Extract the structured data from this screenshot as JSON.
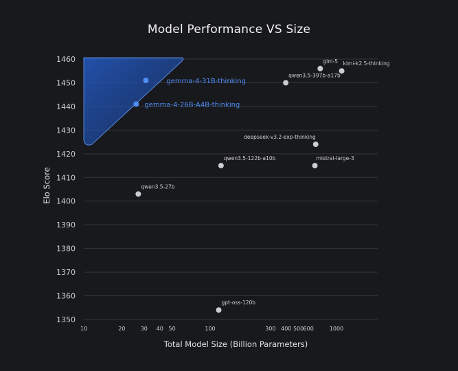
{
  "chart_data": {
    "type": "scatter",
    "title": "Model Performance VS Size",
    "xlabel": "Total Model Size (Billion Parameters)",
    "ylabel": "Elo Score",
    "x_scale": "log",
    "xlim": [
      10,
      1500
    ],
    "ylim": [
      1350,
      1460
    ],
    "x_ticks": [
      10,
      20,
      30,
      40,
      50,
      100,
      300,
      400,
      500,
      600,
      1000
    ],
    "y_ticks": [
      1350,
      1360,
      1370,
      1380,
      1390,
      1400,
      1410,
      1420,
      1430,
      1440,
      1450,
      1460
    ],
    "grid": "horizontal",
    "colors": {
      "default_point": "#c9ccd1",
      "highlight_point": "#4f8df5",
      "highlight_region": "#2563d8"
    },
    "points": [
      {
        "label": "gemma-4-31B-thinking",
        "x": 31,
        "y": 1451,
        "highlight": true
      },
      {
        "label": "gemma-4-26B-A4B-thinking",
        "x": 26,
        "y": 1441,
        "highlight": true
      },
      {
        "label": "glm-5",
        "x": 744,
        "y": 1456,
        "highlight": false
      },
      {
        "label": "kimi-k2.5-thinking",
        "x": 1100,
        "y": 1455,
        "highlight": false
      },
      {
        "label": "qwen3.5-397b-a17b",
        "x": 397,
        "y": 1450,
        "highlight": false
      },
      {
        "label": "deepseek-v3.2-exp-thinking",
        "x": 685,
        "y": 1424,
        "highlight": false
      },
      {
        "label": "qwen3.5-122b-a10b",
        "x": 122,
        "y": 1415,
        "highlight": false
      },
      {
        "label": "mistral-large-3",
        "x": 675,
        "y": 1415,
        "highlight": false
      },
      {
        "label": "qwen3.5-27b",
        "x": 27,
        "y": 1403,
        "highlight": false
      },
      {
        "label": "gpt-oss-120b",
        "x": 117,
        "y": 1354,
        "highlight": false
      }
    ]
  }
}
